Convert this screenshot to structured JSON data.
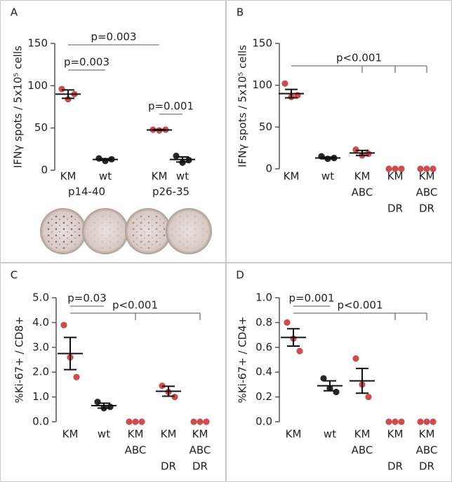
{
  "chart_data": [
    {
      "type": "dot",
      "panel": "A",
      "ylabel": "IFNγ spots / 5x10⁵ cells",
      "ylim": [
        0,
        150
      ],
      "yticks": [
        0,
        50,
        100,
        150
      ],
      "categories": [
        [
          "KM"
        ],
        [
          "wt"
        ],
        [
          "KM"
        ],
        [
          "wt"
        ]
      ],
      "groups": [
        {
          "label": "p14-40",
          "from": 0,
          "to": 1
        },
        {
          "label": "p26-35",
          "from": 2,
          "to": 3
        }
      ],
      "points": [
        [
          96,
          84,
          90
        ],
        [
          14,
          11,
          13
        ],
        [
          48,
          47,
          48
        ],
        [
          17,
          9,
          12
        ]
      ],
      "means": [
        90,
        12.7,
        47.7,
        12.7
      ],
      "errors": [
        5,
        1,
        0.5,
        3
      ],
      "colors": [
        "#c8393b",
        "#111111",
        "#c8393b",
        "#111111"
      ],
      "annotations": [
        {
          "text": "p=0.003",
          "from": 0,
          "to": 1
        },
        {
          "text": "p=0.003",
          "from": 0,
          "to": 2
        },
        {
          "text": "p=0.001",
          "from": 2,
          "to": 3
        }
      ]
    },
    {
      "type": "dot",
      "panel": "B",
      "ylabel": "IFNγ spots / 5x10⁵ cells",
      "ylim": [
        0,
        150
      ],
      "yticks": [
        0,
        50,
        100,
        150
      ],
      "categories": [
        [
          "KM"
        ],
        [
          "wt"
        ],
        [
          "KM",
          "ABC"
        ],
        [
          "KM",
          null,
          "DR"
        ],
        [
          "KM",
          "ABC",
          "DR"
        ]
      ],
      "points": [
        [
          102,
          86,
          88
        ],
        [
          15,
          12,
          13
        ],
        [
          23,
          16,
          18
        ],
        [
          0,
          0,
          0
        ],
        [
          0,
          0,
          0
        ]
      ],
      "means": [
        90,
        13,
        19,
        null,
        null
      ],
      "errors": [
        5,
        1,
        3,
        null,
        null
      ],
      "colors": [
        "#c8393b",
        "#111111",
        "#c8393b",
        "#c8393b",
        "#c8393b"
      ],
      "annotations": [
        {
          "text": "p<0.001",
          "from": 0,
          "to": [
            2,
            3,
            4
          ]
        }
      ]
    },
    {
      "type": "dot",
      "panel": "C",
      "ylabel": "%Ki-67+ / CD8+",
      "ylim": [
        0,
        5
      ],
      "yticks": [
        {
          "value": 0,
          "label": "0.0"
        },
        {
          "value": 1,
          "label": "1.0"
        },
        {
          "value": 2,
          "label": "2.0"
        },
        {
          "value": 3,
          "label": "3.0"
        },
        {
          "value": 4,
          "label": "4.0"
        },
        {
          "value": 5,
          "label": "5.0"
        }
      ],
      "categories": [
        [
          "KM"
        ],
        [
          "wt"
        ],
        [
          "KM",
          "ABC"
        ],
        [
          "KM",
          null,
          "DR"
        ],
        [
          "KM",
          "ABC",
          "DR"
        ]
      ],
      "points": [
        [
          3.9,
          2.6,
          1.8
        ],
        [
          0.8,
          0.55,
          0.6
        ],
        [
          0,
          0,
          0
        ],
        [
          1.45,
          1.2,
          1.0
        ],
        [
          0,
          0,
          0
        ]
      ],
      "means": [
        2.75,
        0.65,
        null,
        1.23,
        null
      ],
      "errors": [
        0.65,
        0.1,
        null,
        0.2,
        null
      ],
      "colors": [
        "#c8393b",
        "#111111",
        "#c8393b",
        "#c8393b",
        "#c8393b"
      ],
      "annotations": [
        {
          "text": "p=0.03",
          "from": 0,
          "to": 1
        },
        {
          "text": "p<0.001",
          "from": 0,
          "to": [
            2,
            4
          ]
        }
      ]
    },
    {
      "type": "dot",
      "panel": "D",
      "ylabel": "%Ki-67+ / CD4+",
      "ylim": [
        0,
        1
      ],
      "yticks": [
        {
          "value": 0,
          "label": "0.0"
        },
        {
          "value": 0.2,
          "label": "0.2"
        },
        {
          "value": 0.4,
          "label": "0.4"
        },
        {
          "value": 0.6,
          "label": "0.6"
        },
        {
          "value": 0.8,
          "label": "0.8"
        },
        {
          "value": 1,
          "label": "1.0"
        }
      ],
      "categories": [
        [
          "KM"
        ],
        [
          "wt"
        ],
        [
          "KM",
          "ABC"
        ],
        [
          "KM",
          null,
          "DR"
        ],
        [
          "KM",
          "ABC",
          "DR"
        ]
      ],
      "points": [
        [
          0.8,
          0.67,
          0.57
        ],
        [
          0.35,
          0.27,
          0.24
        ],
        [
          0.51,
          0.3,
          0.2
        ],
        [
          0,
          0,
          0
        ],
        [
          0,
          0,
          0
        ]
      ],
      "means": [
        0.68,
        0.29,
        0.33,
        null,
        null
      ],
      "errors": [
        0.07,
        0.04,
        0.1,
        null,
        null
      ],
      "colors": [
        "#c8393b",
        "#111111",
        "#c8393b",
        "#c8393b",
        "#c8393b"
      ],
      "annotations": [
        {
          "text": "p=0.001",
          "from": 0,
          "to": 1
        },
        {
          "text": "p<0.001",
          "from": 0,
          "to": [
            3,
            4
          ]
        }
      ]
    }
  ]
}
